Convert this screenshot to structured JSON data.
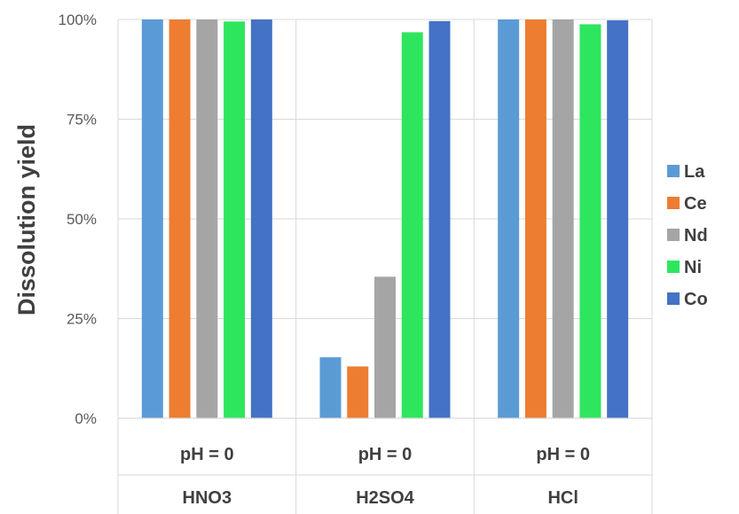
{
  "chart_data": {
    "type": "bar",
    "ylabel": "Dissolution yield",
    "ylim": [
      0,
      100
    ],
    "yticks": [
      "0%",
      "25%",
      "50%",
      "75%",
      "100%"
    ],
    "ytick_values": [
      0,
      25,
      50,
      75,
      100
    ],
    "categories": [
      {
        "condition": "pH = 0",
        "acid": "HNO3"
      },
      {
        "condition": "pH = 0",
        "acid": "H2SO4"
      },
      {
        "condition": "pH = 0",
        "acid": "HCl"
      }
    ],
    "series": [
      {
        "name": "La",
        "color": "#5B9BD5",
        "values": [
          100,
          15.3,
          100
        ]
      },
      {
        "name": "Ce",
        "color": "#ED7D31",
        "values": [
          100,
          13.0,
          100
        ]
      },
      {
        "name": "Nd",
        "color": "#A5A5A5",
        "values": [
          100,
          35.5,
          100
        ]
      },
      {
        "name": "Ni",
        "color": "#2EE65E",
        "values": [
          99.5,
          96.8,
          98.8
        ]
      },
      {
        "name": "Co",
        "color": "#4472C4",
        "values": [
          100,
          99.6,
          99.8
        ]
      }
    ],
    "legend_position": "right",
    "grid": true
  }
}
